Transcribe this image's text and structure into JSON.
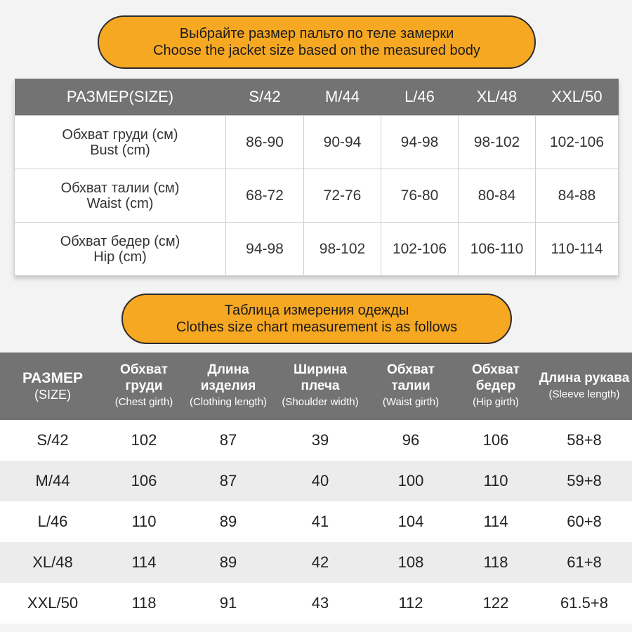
{
  "banner_top": {
    "line1": "Выбрайте размер пальто по теле замерки",
    "line2": "Choose the jacket size based on the measured body"
  },
  "body_table": {
    "header_label": "РАЗМЕР(SIZE)",
    "sizes": [
      "S/42",
      "M/44",
      "L/46",
      "XL/48",
      "XXL/50"
    ],
    "rows": [
      {
        "label_ru": "Обхват груди (см)",
        "label_en": "Bust (cm)",
        "values": [
          "86-90",
          "90-94",
          "94-98",
          "98-102",
          "102-106"
        ]
      },
      {
        "label_ru": "Обхват талии (см)",
        "label_en": "Waist (cm)",
        "values": [
          "68-72",
          "72-76",
          "76-80",
          "80-84",
          "84-88"
        ]
      },
      {
        "label_ru": "Обхват бедер (см)",
        "label_en": "Hip (cm)",
        "values": [
          "94-98",
          "98-102",
          "102-106",
          "106-110",
          "110-114"
        ]
      }
    ]
  },
  "banner_bottom": {
    "line1": "Таблица измерения одежды",
    "line2": "Clothes size chart measurement is as follows"
  },
  "garment_table": {
    "columns": [
      {
        "ru": "РАЗМЕР",
        "en": "(SIZE)"
      },
      {
        "ru": "Обхват груди",
        "en": "(Chest girth)"
      },
      {
        "ru": "Длина изделия",
        "en": "(Clothing length)"
      },
      {
        "ru": "Ширина плеча",
        "en": "(Shoulder width)"
      },
      {
        "ru": "Обхват талии",
        "en": "(Waist girth)"
      },
      {
        "ru": "Обхват бедер",
        "en": "(Hip girth)"
      },
      {
        "ru": "Длина рукава",
        "en": "(Sleeve length)"
      }
    ],
    "rows": [
      [
        "S/42",
        "102",
        "87",
        "39",
        "96",
        "106",
        "58+8"
      ],
      [
        "M/44",
        "106",
        "87",
        "40",
        "100",
        "110",
        "59+8"
      ],
      [
        "L/46",
        "110",
        "89",
        "41",
        "104",
        "114",
        "60+8"
      ],
      [
        "XL/48",
        "114",
        "89",
        "42",
        "108",
        "118",
        "61+8"
      ],
      [
        "XXL/50",
        "118",
        "91",
        "43",
        "112",
        "122",
        "61.5+8"
      ]
    ]
  }
}
